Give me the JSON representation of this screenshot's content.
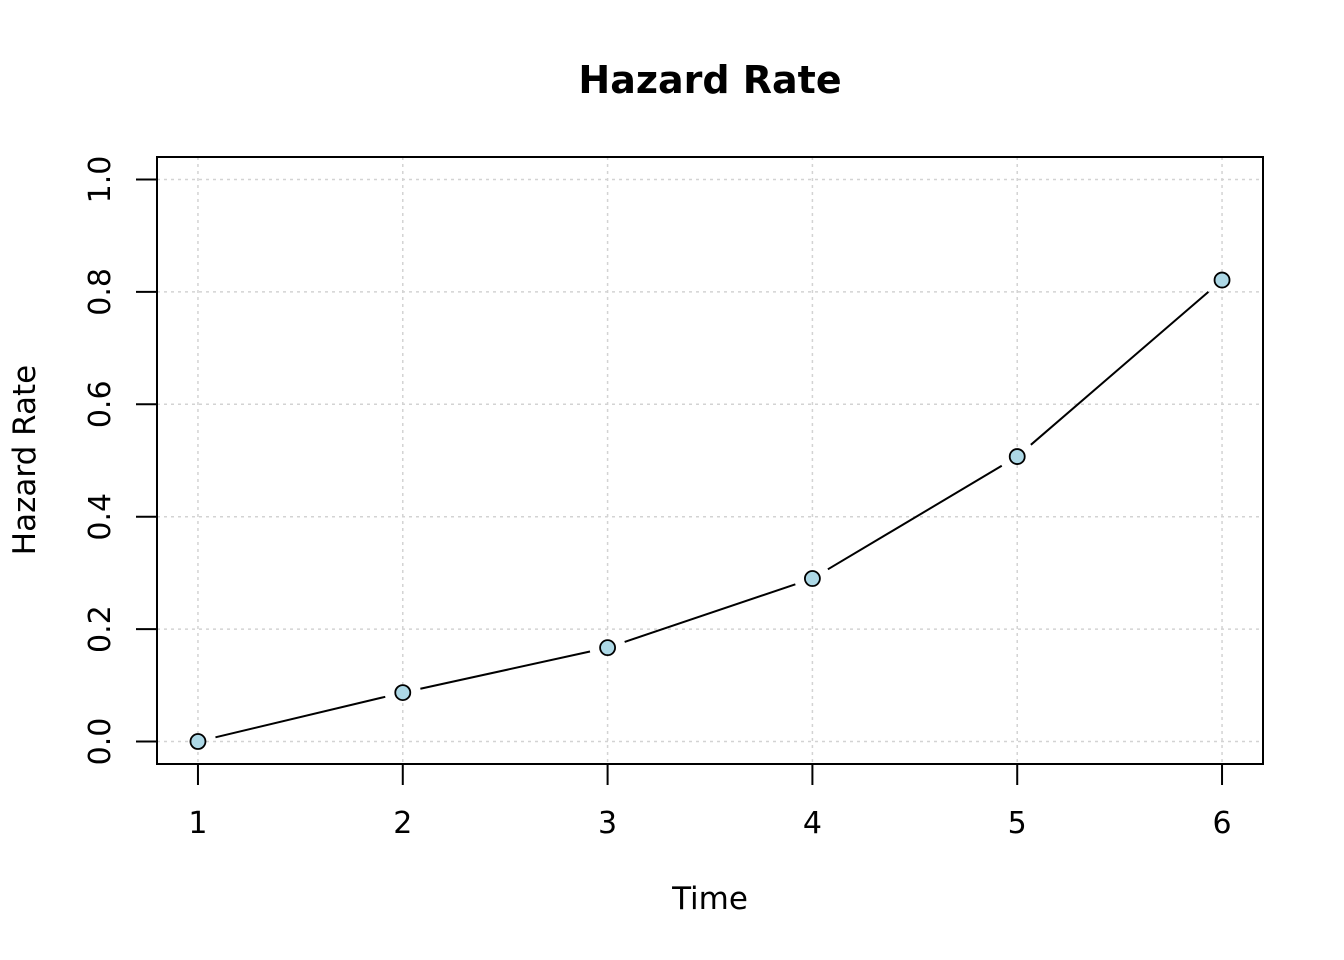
{
  "chart_data": {
    "type": "line",
    "title": "Hazard Rate",
    "xlabel": "Time",
    "ylabel": "Hazard Rate",
    "x": [
      1,
      2,
      3,
      4,
      5,
      6
    ],
    "x_tick_labels": [
      "1",
      "2",
      "3",
      "4",
      "5",
      "6"
    ],
    "y_tick_values": [
      0.0,
      0.2,
      0.4,
      0.6,
      0.8,
      1.0
    ],
    "y_tick_labels": [
      "0.0",
      "0.2",
      "0.4",
      "0.6",
      "0.8",
      "1.0"
    ],
    "series": [
      {
        "values": [
          0.0,
          0.087,
          0.167,
          0.29,
          0.507,
          0.821
        ]
      }
    ],
    "xlim": [
      0.8,
      6.2
    ],
    "ylim": [
      -0.04,
      1.04
    ],
    "grid": true,
    "colors": {
      "line": "#000000",
      "marker_fill": "#add8e6",
      "marker_stroke": "#000000",
      "grid": "#d3d3d3"
    }
  }
}
